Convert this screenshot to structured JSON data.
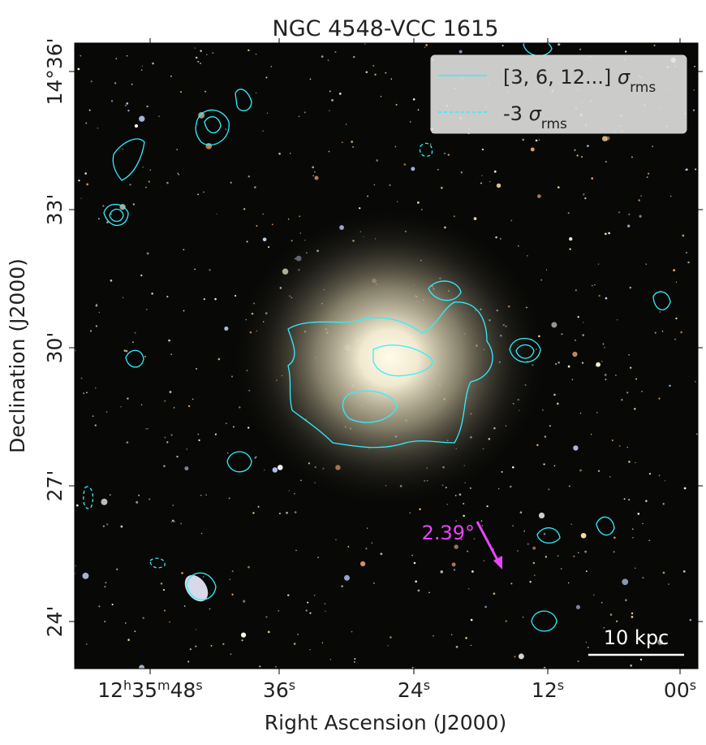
{
  "title": "NGC 4548-VCC 1615",
  "x_axis": {
    "label": "Right Ascension (J2000)",
    "tick_labels": [
      "12h35m48s",
      "36s",
      "24s",
      "12s",
      "00s"
    ]
  },
  "y_axis": {
    "label": "Declination (J2000)",
    "tick_labels": [
      "14°36'",
      "33'",
      "30'",
      "27'",
      "24'"
    ]
  },
  "legend": [
    {
      "text": "[3, 6, 12...]",
      "symbol": "σ",
      "subscript": "rms"
    },
    {
      "text": "-3",
      "symbol": "σ",
      "subscript": "rms"
    }
  ],
  "annotation": "2.39°",
  "scale_bar": "10 kpc"
}
